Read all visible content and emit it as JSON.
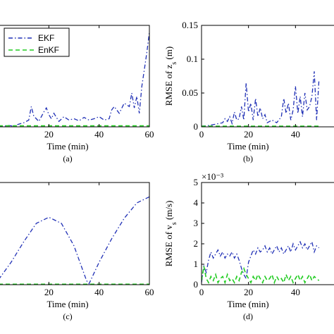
{
  "colors": {
    "ekf": "#1f2fb5",
    "enkf": "#22cc22",
    "axis": "#000000"
  },
  "chart_data": [
    {
      "id": "a",
      "type": "line",
      "caption": "(a)",
      "xlabel": "Time (min)",
      "ylabel": "",
      "xlim": [
        0,
        60
      ],
      "ylim": [
        0,
        0.15
      ],
      "xticks": [
        20,
        40,
        60
      ],
      "yticks": [],
      "legend": {
        "position": "top-left",
        "entries": [
          "EKF",
          "EnKF"
        ]
      },
      "series": [
        {
          "name": "EKF",
          "style": "dashdot",
          "x": [
            0,
            2,
            4,
            6,
            8,
            10,
            12,
            13,
            14,
            15,
            16,
            18,
            19,
            20,
            21,
            22,
            24,
            26,
            28,
            30,
            32,
            34,
            36,
            38,
            40,
            42,
            44,
            45,
            46,
            48,
            50,
            52,
            53,
            54,
            55,
            56,
            57,
            58,
            59,
            60
          ],
          "y": [
            0.001,
            0.001,
            0.002,
            0.001,
            0.004,
            0.006,
            0.01,
            0.03,
            0.016,
            0.012,
            0.008,
            0.022,
            0.028,
            0.018,
            0.012,
            0.02,
            0.008,
            0.015,
            0.01,
            0.012,
            0.009,
            0.014,
            0.01,
            0.012,
            0.015,
            0.01,
            0.012,
            0.025,
            0.03,
            0.02,
            0.035,
            0.03,
            0.05,
            0.028,
            0.045,
            0.02,
            0.06,
            0.085,
            0.11,
            0.14
          ]
        },
        {
          "name": "EnKF",
          "style": "dashed",
          "x": [
            0,
            60
          ],
          "y": [
            0.0015,
            0.0015
          ]
        }
      ]
    },
    {
      "id": "b",
      "type": "line",
      "caption": "(b)",
      "xlabel": "Time (min)",
      "ylabel": "RMSE of z_s (m)",
      "xlim": [
        0,
        60
      ],
      "ylim": [
        0,
        0.15
      ],
      "xticks": [
        0,
        20,
        40
      ],
      "yticks": [
        0,
        0.05,
        0.1,
        0.15
      ],
      "ytick_labels": [
        "0",
        "0.05",
        "0.1",
        "0.15"
      ],
      "series": [
        {
          "name": "EKF",
          "style": "dashdot",
          "x": [
            0,
            3,
            6,
            9,
            10,
            11,
            12,
            13,
            14,
            15,
            16,
            17,
            18,
            19,
            20,
            21,
            22,
            23,
            24,
            25,
            26,
            27,
            28,
            30,
            32,
            34,
            35,
            36,
            37,
            38,
            39,
            40,
            41,
            42,
            43,
            44,
            45,
            46,
            47,
            48,
            49,
            50
          ],
          "y": [
            0.001,
            0.002,
            0.004,
            0.006,
            0.012,
            0.008,
            0.015,
            0.005,
            0.022,
            0.01,
            0.012,
            0.03,
            0.01,
            0.065,
            0.022,
            0.035,
            0.01,
            0.042,
            0.015,
            0.028,
            0.012,
            0.018,
            0.006,
            0.01,
            0.006,
            0.015,
            0.042,
            0.02,
            0.035,
            0.01,
            0.025,
            0.06,
            0.02,
            0.045,
            0.015,
            0.05,
            0.025,
            0.03,
            0.045,
            0.082,
            0.01,
            0.07
          ]
        },
        {
          "name": "EnKF",
          "style": "dashed",
          "x": [
            0,
            50
          ],
          "y": [
            0.001,
            0.001
          ]
        }
      ]
    },
    {
      "id": "c",
      "type": "line",
      "caption": "(c)",
      "xlabel": "Time (min)",
      "ylabel": "",
      "xlim": [
        0,
        60
      ],
      "ylim": [
        0,
        1
      ],
      "xticks": [
        20,
        40,
        60
      ],
      "yticks": [],
      "series": [
        {
          "name": "EKF",
          "style": "dashdot",
          "x": [
            0,
            5,
            10,
            15,
            20,
            25,
            30,
            35,
            36,
            40,
            45,
            50,
            55,
            60
          ],
          "y": [
            0.05,
            0.22,
            0.42,
            0.6,
            0.66,
            0.6,
            0.38,
            0.04,
            0.01,
            0.22,
            0.45,
            0.65,
            0.8,
            0.86
          ]
        },
        {
          "name": "EnKF",
          "style": "dashed",
          "x": [
            0,
            60
          ],
          "y": [
            0.005,
            0.005
          ]
        }
      ]
    },
    {
      "id": "d",
      "type": "line",
      "caption": "(d)",
      "xlabel": "Time (min)",
      "ylabel": "RMSE of v_s (m/s)",
      "multiplier": "×10⁻³",
      "xlim": [
        0,
        60
      ],
      "ylim": [
        0,
        5
      ],
      "xticks": [
        0,
        20,
        40
      ],
      "yticks": [
        0,
        1,
        2,
        3,
        4,
        5
      ],
      "ytick_labels": [
        "0",
        "1",
        "2",
        "3",
        "4",
        "5"
      ],
      "series": [
        {
          "name": "EKF",
          "style": "dashdot",
          "x": [
            0,
            1,
            2,
            3,
            4,
            5,
            6,
            7,
            8,
            9,
            10,
            11,
            12,
            13,
            14,
            15,
            16,
            17,
            18,
            19,
            20,
            21,
            22,
            23,
            24,
            25,
            26,
            27,
            28,
            29,
            30,
            31,
            32,
            33,
            34,
            35,
            36,
            37,
            38,
            39,
            40,
            41,
            42,
            43,
            44,
            45,
            46,
            47,
            48,
            49,
            50
          ],
          "y": [
            0.1,
            0.9,
            0.6,
            1.2,
            1.6,
            1.3,
            1.5,
            1.7,
            1.4,
            1.6,
            1.3,
            1.5,
            1.4,
            1.6,
            1.3,
            1.5,
            1.2,
            0.8,
            0.5,
            0.3,
            1.1,
            1.4,
            1.7,
            1.5,
            1.8,
            1.6,
            1.7,
            1.9,
            1.6,
            1.8,
            1.5,
            1.7,
            1.9,
            1.6,
            1.8,
            1.5,
            1.7,
            1.9,
            1.6,
            2.0,
            1.7,
            1.9,
            2.1,
            1.8,
            2.0,
            1.7,
            1.9,
            2.1,
            1.6,
            1.9,
            1.8
          ]
        },
        {
          "name": "EnKF",
          "style": "dashed",
          "x": [
            0,
            1,
            2,
            3,
            4,
            5,
            6,
            7,
            8,
            9,
            10,
            11,
            12,
            13,
            14,
            15,
            16,
            17,
            18,
            19,
            20,
            21,
            22,
            23,
            24,
            25,
            26,
            27,
            28,
            29,
            30,
            31,
            32,
            33,
            34,
            35,
            36,
            37,
            38,
            39,
            40,
            41,
            42,
            43,
            44,
            45,
            46,
            47,
            48,
            49,
            50
          ],
          "y": [
            0.2,
            0.9,
            0.3,
            0.1,
            0.4,
            0.2,
            0.5,
            0.1,
            0.3,
            0.4,
            0.1,
            0.5,
            0.2,
            0.3,
            0.1,
            0.4,
            0.2,
            0.6,
            0.8,
            0.5,
            0.3,
            0.1,
            0.4,
            0.2,
            0.5,
            0.3,
            0.1,
            0.4,
            0.2,
            0.3,
            0.5,
            0.1,
            0.4,
            0.2,
            0.3,
            0.1,
            0.5,
            0.2,
            0.4,
            0.1,
            0.3,
            0.5,
            0.2,
            0.4,
            0.1,
            0.3,
            0.5,
            0.2,
            0.4,
            0.3,
            0.2
          ]
        }
      ]
    }
  ]
}
